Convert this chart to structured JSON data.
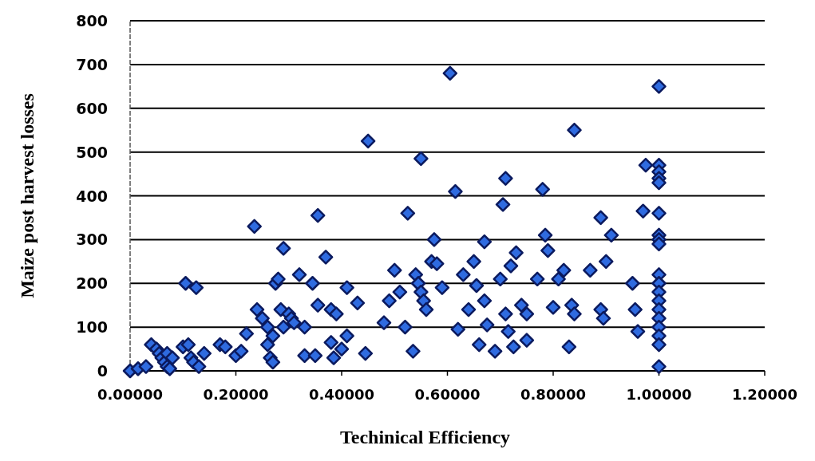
{
  "chart_data": {
    "type": "scatter",
    "xlabel": "Techinical Efficiency",
    "ylabel": "Maize post harvest losses",
    "xlim": [
      0,
      1.2
    ],
    "ylim": [
      0,
      800
    ],
    "xticks": [
      {
        "value": 0,
        "label": "0.00000"
      },
      {
        "value": 0.2,
        "label": "0.20000"
      },
      {
        "value": 0.4,
        "label": "0.40000"
      },
      {
        "value": 0.6,
        "label": "0.60000"
      },
      {
        "value": 0.8,
        "label": "0.80000"
      },
      {
        "value": 1,
        "label": "1.00000"
      },
      {
        "value": 1.2,
        "label": "1.20000"
      }
    ],
    "yticks": [
      0,
      100,
      200,
      300,
      400,
      500,
      600,
      700,
      800
    ],
    "grid": "y",
    "marker": "diamond",
    "series": [
      {
        "color": "#2f6be0",
        "x": [
          0,
          0.015,
          0.03,
          0.04,
          0.05,
          0.055,
          0.06,
          0.065,
          0.07,
          0.075,
          0.07,
          0.08,
          0.1,
          0.11,
          0.115,
          0.12,
          0.13,
          0.105,
          0.125,
          0.14,
          0.17,
          0.18,
          0.2,
          0.21,
          0.22,
          0.24,
          0.235,
          0.25,
          0.26,
          0.27,
          0.275,
          0.28,
          0.285,
          0.29,
          0.26,
          0.265,
          0.27,
          0.3,
          0.305,
          0.31,
          0.29,
          0.32,
          0.33,
          0.33,
          0.35,
          0.345,
          0.355,
          0.355,
          0.37,
          0.38,
          0.39,
          0.38,
          0.385,
          0.4,
          0.41,
          0.41,
          0.43,
          0.445,
          0.45,
          0.48,
          0.49,
          0.5,
          0.51,
          0.52,
          0.525,
          0.535,
          0.54,
          0.545,
          0.55,
          0.555,
          0.55,
          0.56,
          0.57,
          0.575,
          0.58,
          0.59,
          0.605,
          0.615,
          0.62,
          0.63,
          0.64,
          0.65,
          0.655,
          0.66,
          0.67,
          0.67,
          0.675,
          0.69,
          0.7,
          0.705,
          0.71,
          0.71,
          0.715,
          0.72,
          0.73,
          0.725,
          0.74,
          0.75,
          0.75,
          0.77,
          0.78,
          0.785,
          0.79,
          0.8,
          0.81,
          0.82,
          0.83,
          0.835,
          0.84,
          0.84,
          0.87,
          0.89,
          0.89,
          0.895,
          0.91,
          0.9,
          0.95,
          0.955,
          0.96,
          0.97,
          0.975,
          1,
          1,
          1,
          1,
          1,
          1,
          1,
          1,
          1,
          1,
          1,
          1,
          1,
          1,
          1,
          1,
          1,
          1,
          1
        ],
        "values": [
          0,
          5,
          10,
          60,
          50,
          40,
          30,
          20,
          10,
          5,
          40,
          30,
          55,
          60,
          30,
          20,
          10,
          200,
          190,
          40,
          60,
          55,
          35,
          45,
          85,
          140,
          330,
          120,
          100,
          80,
          200,
          210,
          140,
          100,
          60,
          30,
          20,
          130,
          120,
          110,
          280,
          220,
          100,
          35,
          35,
          200,
          150,
          355,
          260,
          140,
          130,
          65,
          30,
          50,
          80,
          190,
          155,
          40,
          525,
          110,
          160,
          230,
          180,
          100,
          360,
          45,
          220,
          200,
          180,
          160,
          485,
          140,
          250,
          300,
          245,
          190,
          680,
          410,
          95,
          220,
          140,
          250,
          195,
          60,
          295,
          160,
          105,
          45,
          210,
          380,
          440,
          130,
          90,
          240,
          270,
          55,
          150,
          130,
          70,
          210,
          415,
          310,
          275,
          145,
          210,
          230,
          55,
          150,
          130,
          550,
          230,
          350,
          140,
          120,
          310,
          250,
          200,
          140,
          90,
          365,
          470,
          650,
          470,
          455,
          440,
          430,
          360,
          310,
          300,
          290,
          220,
          200,
          180,
          160,
          140,
          120,
          100,
          80,
          60,
          10
        ]
      }
    ]
  }
}
